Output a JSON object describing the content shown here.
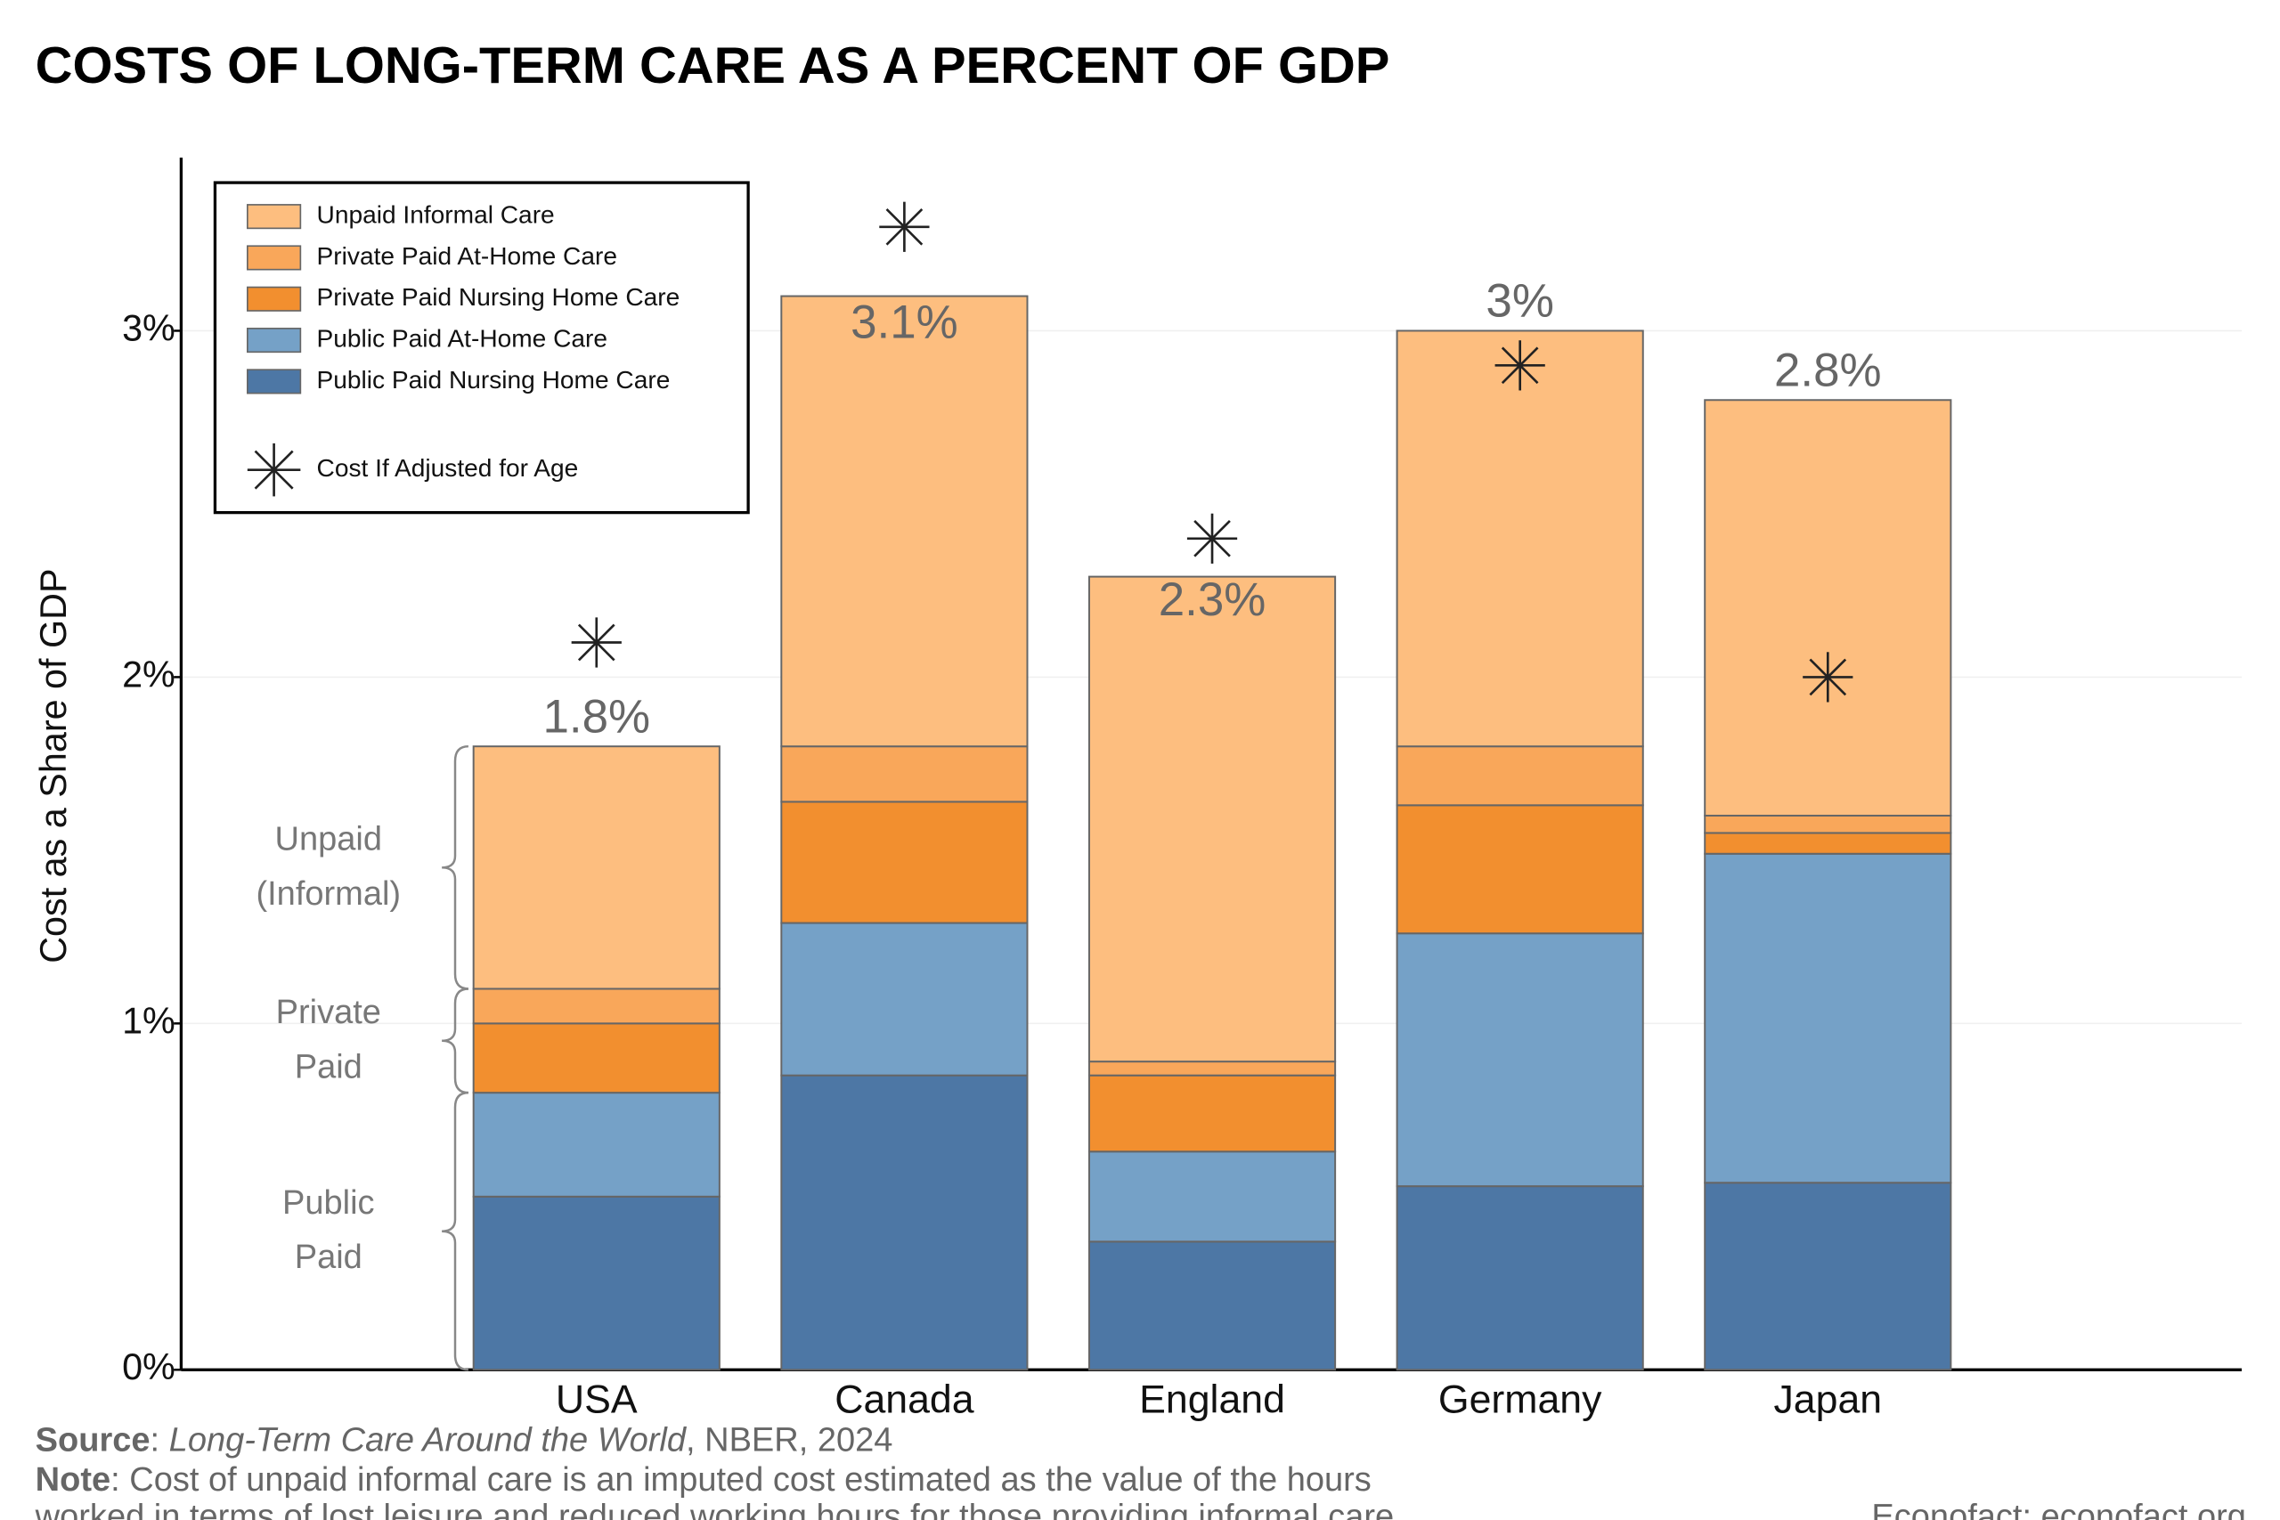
{
  "chart_data": {
    "type": "stacked_bar",
    "title": "COSTS OF LONG-TERM CARE AS A PERCENT OF GDP",
    "y_label": "Cost as a Share of GDP",
    "categories": [
      "USA",
      "Canada",
      "England",
      "Germany",
      "Japan"
    ],
    "series": [
      {
        "name": "Public Paid Nursing Home Care",
        "color": "#4d77a5",
        "values": [
          0.5,
          0.85,
          0.37,
          0.53,
          0.54
        ]
      },
      {
        "name": "Public Paid At-Home Care",
        "color": "#75a1c7",
        "values": [
          0.3,
          0.44,
          0.26,
          0.73,
          0.95
        ]
      },
      {
        "name": "Private Paid Nursing Home Care",
        "color": "#f28f2f",
        "values": [
          0.2,
          0.35,
          0.22,
          0.37,
          0.06
        ]
      },
      {
        "name": "Private Paid At-Home Care",
        "color": "#f9a75a",
        "values": [
          0.1,
          0.16,
          0.04,
          0.17,
          0.05
        ]
      },
      {
        "name": "Unpaid Informal Care",
        "color": "#fdbe7f",
        "values": [
          0.7,
          1.3,
          1.4,
          1.2,
          1.2
        ]
      }
    ],
    "totals": {
      "values": [
        1.8,
        3.1,
        2.3,
        3,
        2.8
      ],
      "value_labels": [
        "1.8%",
        "3.1%",
        "2.3%",
        "3%",
        "2.8%"
      ]
    },
    "adjusted": {
      "name": "Cost If Adjusted for Age",
      "color": "#222222",
      "values": [
        2.1,
        3.3,
        2.4,
        2.9,
        2.0
      ]
    },
    "ylim": [
      0,
      3.5
    ],
    "yticks": [
      {
        "value": 0,
        "label": "0%"
      },
      {
        "value": 1,
        "label": "1%"
      },
      {
        "value": 2,
        "label": "2%"
      },
      {
        "value": 3,
        "label": "3%"
      }
    ],
    "grid": true,
    "legend_position": "upper left",
    "annotations": [
      {
        "lines": [
          "Public",
          "Paid"
        ]
      },
      {
        "lines": [
          "Private",
          "Paid"
        ]
      },
      {
        "lines": [
          "Unpaid",
          "(Informal)"
        ]
      }
    ],
    "source": {
      "label": "Source",
      "separator": ": ",
      "work": "Long-Term Care Around the World",
      "rest": ", NBER, 2024"
    },
    "note": {
      "label": "Note",
      "lines": [
        ": Cost of unpaid informal care is an imputed cost estimated as the value of the hours",
        "worked in terms of lost leisure and reduced working hours for those providing informal care."
      ]
    },
    "credit": "Econofact: econofact.org"
  }
}
